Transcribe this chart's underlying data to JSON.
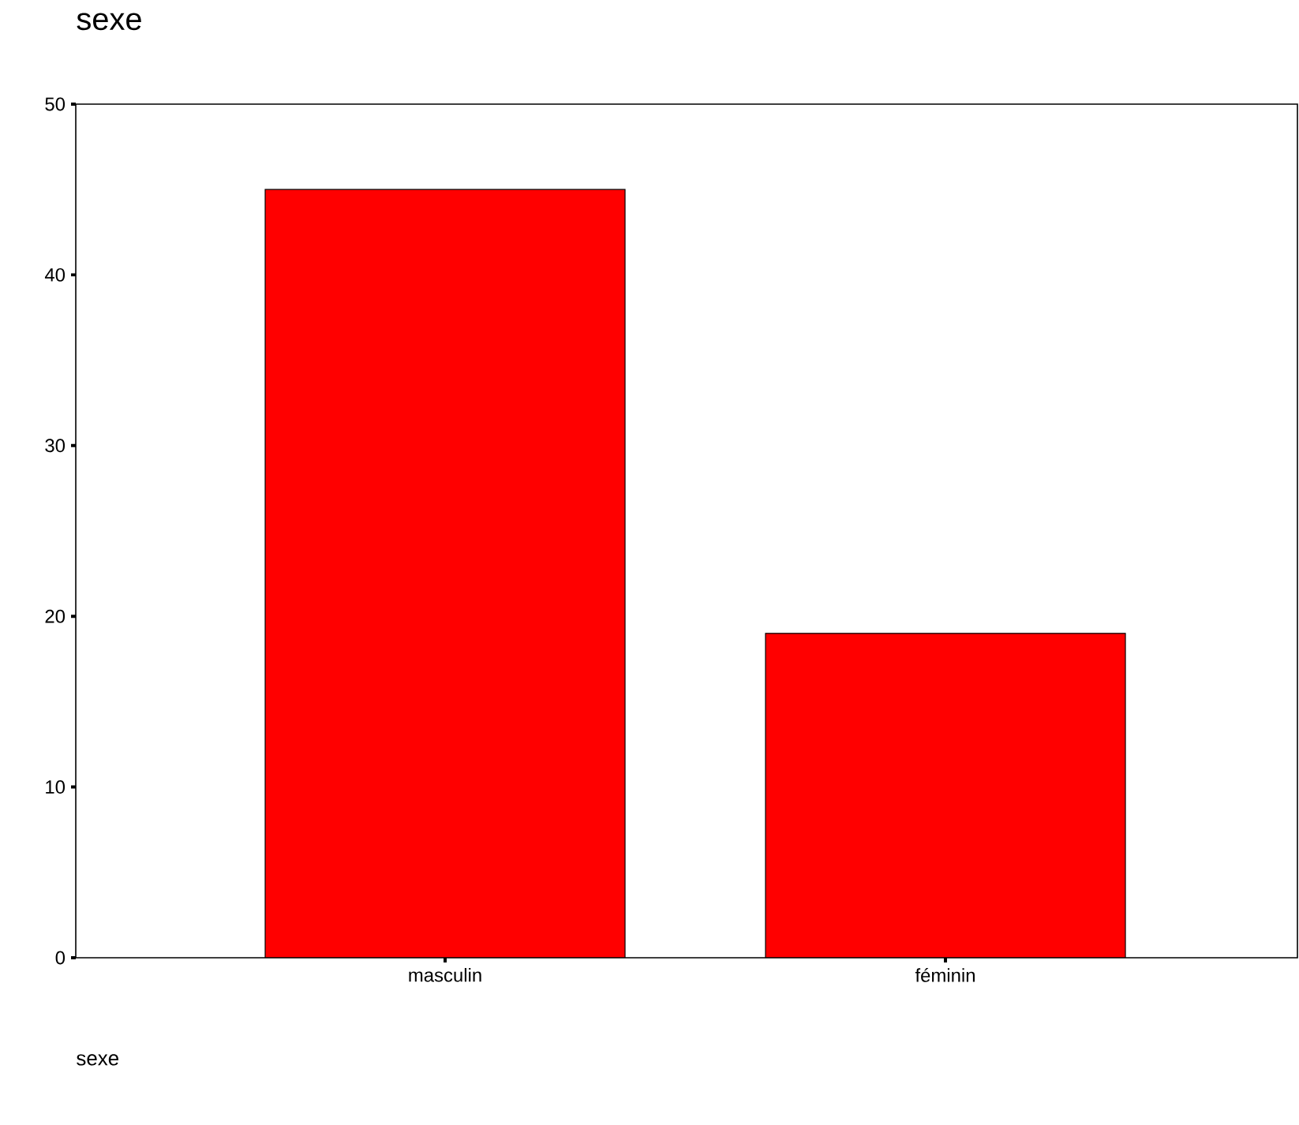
{
  "chart_data": {
    "type": "bar",
    "title": "sexe",
    "annotations": [
      "sexe"
    ],
    "categories": [
      "masculin",
      "féminin"
    ],
    "values": [
      45,
      19
    ],
    "color": "#ff0000",
    "ylim": [
      0,
      50
    ],
    "yticks": [
      0,
      10,
      20,
      30,
      40,
      50
    ],
    "grid": false
  }
}
